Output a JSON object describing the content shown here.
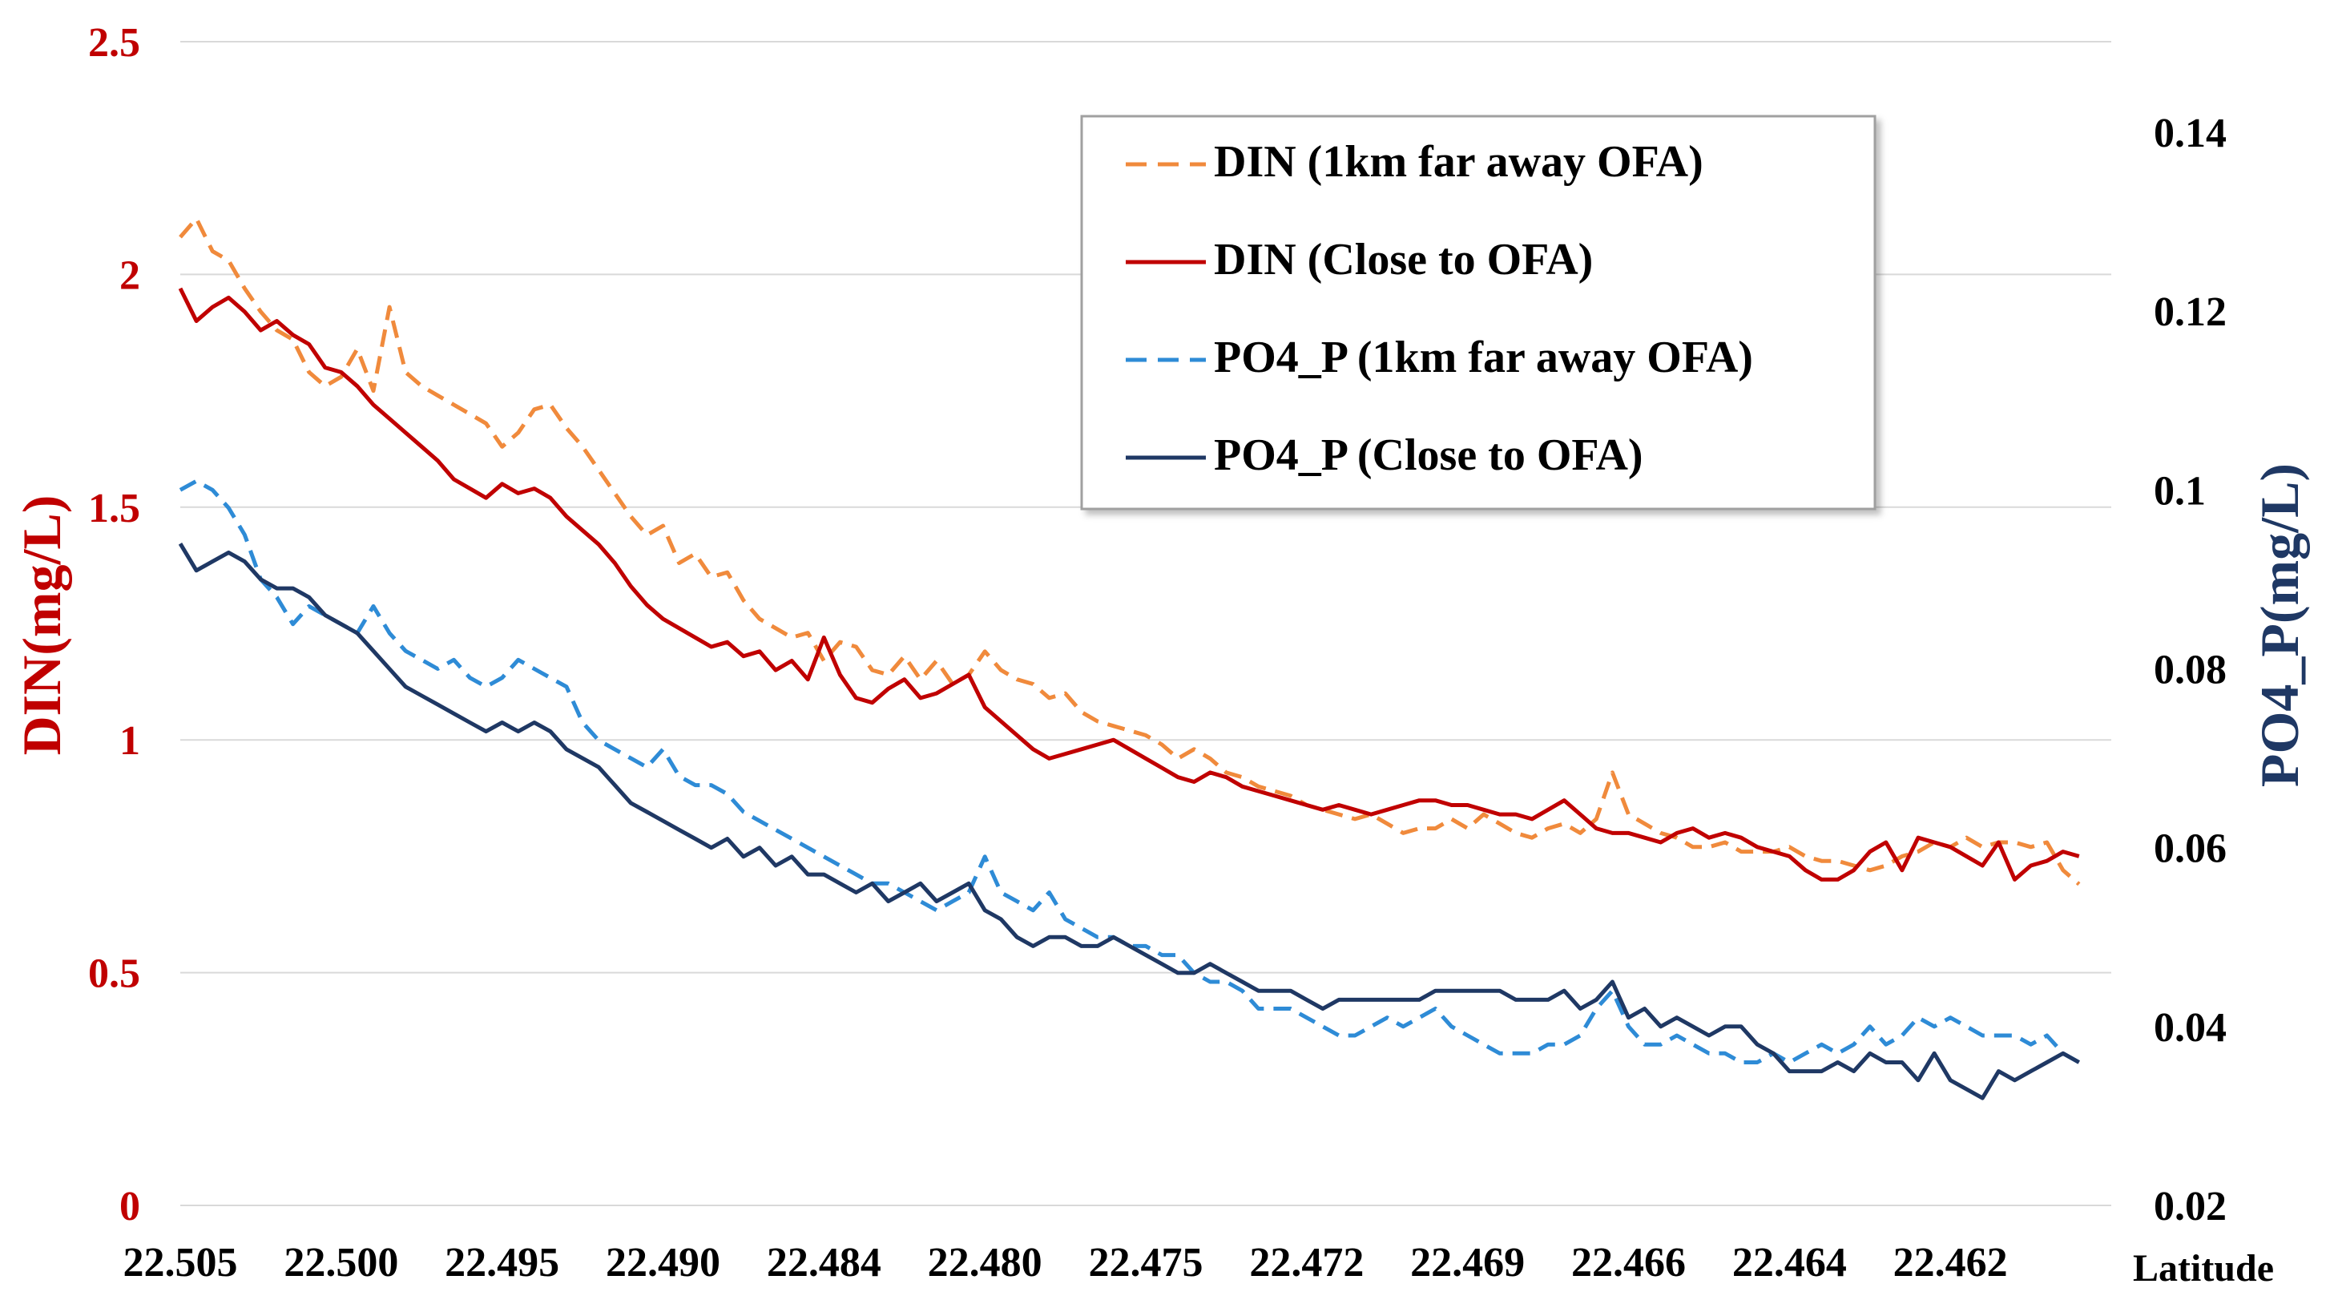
{
  "chart_data": {
    "type": "line",
    "xlabel": "Latitude",
    "ylabel_left": "DIN(mg/L)",
    "ylabel_right": "PO4_P(mg/L)",
    "x_tick_labels": [
      "22.505",
      "22.500",
      "22.495",
      "22.490",
      "22.484",
      "22.480",
      "22.475",
      "22.472",
      "22.469",
      "22.466",
      "22.464",
      "22.462"
    ],
    "y_left": {
      "min": 0,
      "max": 2.5,
      "ticks": [
        "0",
        "0.5",
        "1",
        "1.5",
        "2",
        "2.5"
      ],
      "tick_values": [
        0,
        0.5,
        1,
        1.5,
        2,
        2.5
      ]
    },
    "y_right": {
      "min": 0.02,
      "max": 0.15,
      "ticks": [
        "0.02",
        "0.04",
        "0.06",
        "0.08",
        "0.1",
        "0.12",
        "0.14"
      ],
      "tick_values": [
        0.02,
        0.04,
        0.06,
        0.08,
        0.1,
        0.12,
        0.14
      ]
    },
    "x_index_range": [
      0,
      12
    ],
    "grid": true,
    "legend_position": "top-right",
    "colors": {
      "left_axis": "#c00000",
      "right_axis": "#1f3864",
      "grid": "#d9d9d9",
      "axis_text": "#000000"
    },
    "series": [
      {
        "name": "DIN (1km far away OFA)",
        "axis": "left",
        "color": "#f08a3c",
        "dash": "dashed",
        "x": [
          0,
          0.1,
          0.2,
          0.3,
          0.4,
          0.5,
          0.6,
          0.7,
          0.8,
          0.9,
          1.0,
          1.1,
          1.2,
          1.3,
          1.4,
          1.5,
          1.6,
          1.7,
          1.8,
          1.9,
          2.0,
          2.1,
          2.2,
          2.3,
          2.4,
          2.5,
          2.6,
          2.7,
          2.8,
          2.9,
          3.0,
          3.1,
          3.2,
          3.3,
          3.4,
          3.5,
          3.6,
          3.7,
          3.8,
          3.9,
          4.0,
          4.1,
          4.2,
          4.3,
          4.4,
          4.5,
          4.6,
          4.7,
          4.8,
          4.9,
          5.0,
          5.1,
          5.2,
          5.3,
          5.4,
          5.5,
          5.6,
          5.7,
          5.8,
          5.9,
          6.0,
          6.1,
          6.2,
          6.3,
          6.4,
          6.5,
          6.6,
          6.7,
          6.8,
          6.9,
          7.0,
          7.1,
          7.2,
          7.3,
          7.4,
          7.5,
          7.6,
          7.7,
          7.8,
          7.9,
          8.0,
          8.1,
          8.2,
          8.3,
          8.4,
          8.5,
          8.6,
          8.7,
          8.8,
          8.9,
          9.0,
          9.1,
          9.2,
          9.3,
          9.4,
          9.5,
          9.6,
          9.7,
          9.8,
          9.9,
          10.0,
          10.1,
          10.2,
          10.3,
          10.4,
          10.5,
          10.6,
          10.7,
          10.8,
          10.9,
          11.0,
          11.1,
          11.2,
          11.3,
          11.4,
          11.5,
          11.6,
          11.7,
          11.8
        ],
        "values": [
          2.08,
          2.12,
          2.05,
          2.03,
          1.97,
          1.92,
          1.88,
          1.86,
          1.79,
          1.76,
          1.78,
          1.84,
          1.75,
          1.93,
          1.79,
          1.76,
          1.74,
          1.72,
          1.7,
          1.68,
          1.63,
          1.66,
          1.71,
          1.72,
          1.67,
          1.63,
          1.58,
          1.53,
          1.48,
          1.44,
          1.46,
          1.38,
          1.4,
          1.35,
          1.36,
          1.3,
          1.26,
          1.24,
          1.22,
          1.23,
          1.17,
          1.21,
          1.2,
          1.15,
          1.14,
          1.18,
          1.13,
          1.17,
          1.12,
          1.14,
          1.19,
          1.15,
          1.13,
          1.12,
          1.09,
          1.1,
          1.06,
          1.04,
          1.03,
          1.02,
          1.01,
          0.99,
          0.96,
          0.98,
          0.96,
          0.93,
          0.92,
          0.9,
          0.89,
          0.88,
          0.86,
          0.85,
          0.84,
          0.83,
          0.84,
          0.82,
          0.8,
          0.81,
          0.81,
          0.83,
          0.81,
          0.84,
          0.82,
          0.8,
          0.79,
          0.81,
          0.82,
          0.8,
          0.83,
          0.93,
          0.84,
          0.82,
          0.8,
          0.79,
          0.77,
          0.77,
          0.78,
          0.76,
          0.76,
          0.76,
          0.77,
          0.75,
          0.74,
          0.74,
          0.73,
          0.72,
          0.73,
          0.75,
          0.76,
          0.78,
          0.77,
          0.79,
          0.77,
          0.78,
          0.78,
          0.77,
          0.78,
          0.72,
          0.69
        ]
      },
      {
        "name": "DIN (Close to OFA)",
        "axis": "left",
        "color": "#c00000",
        "dash": "solid",
        "x": [
          0,
          0.1,
          0.2,
          0.3,
          0.4,
          0.5,
          0.6,
          0.7,
          0.8,
          0.9,
          1.0,
          1.1,
          1.2,
          1.3,
          1.4,
          1.5,
          1.6,
          1.7,
          1.8,
          1.9,
          2.0,
          2.1,
          2.2,
          2.3,
          2.4,
          2.5,
          2.6,
          2.7,
          2.8,
          2.9,
          3.0,
          3.1,
          3.2,
          3.3,
          3.4,
          3.5,
          3.6,
          3.7,
          3.8,
          3.9,
          4.0,
          4.1,
          4.2,
          4.3,
          4.4,
          4.5,
          4.6,
          4.7,
          4.8,
          4.9,
          5.0,
          5.1,
          5.2,
          5.3,
          5.4,
          5.5,
          5.6,
          5.7,
          5.8,
          5.9,
          6.0,
          6.1,
          6.2,
          6.3,
          6.4,
          6.5,
          6.6,
          6.7,
          6.8,
          6.9,
          7.0,
          7.1,
          7.2,
          7.3,
          7.4,
          7.5,
          7.6,
          7.7,
          7.8,
          7.9,
          8.0,
          8.1,
          8.2,
          8.3,
          8.4,
          8.5,
          8.6,
          8.7,
          8.8,
          8.9,
          9.0,
          9.1,
          9.2,
          9.3,
          9.4,
          9.5,
          9.6,
          9.7,
          9.8,
          9.9,
          10.0,
          10.1,
          10.2,
          10.3,
          10.4,
          10.5,
          10.6,
          10.7,
          10.8,
          10.9,
          11.0,
          11.1,
          11.2,
          11.3,
          11.4,
          11.5,
          11.6,
          11.7,
          11.8
        ],
        "values": [
          1.97,
          1.9,
          1.93,
          1.95,
          1.92,
          1.88,
          1.9,
          1.87,
          1.85,
          1.8,
          1.79,
          1.76,
          1.72,
          1.69,
          1.66,
          1.63,
          1.6,
          1.56,
          1.54,
          1.52,
          1.55,
          1.53,
          1.54,
          1.52,
          1.48,
          1.45,
          1.42,
          1.38,
          1.33,
          1.29,
          1.26,
          1.24,
          1.22,
          1.2,
          1.21,
          1.18,
          1.19,
          1.15,
          1.17,
          1.13,
          1.22,
          1.14,
          1.09,
          1.08,
          1.11,
          1.13,
          1.09,
          1.1,
          1.12,
          1.14,
          1.07,
          1.04,
          1.01,
          0.98,
          0.96,
          0.97,
          0.98,
          0.99,
          1.0,
          0.98,
          0.96,
          0.94,
          0.92,
          0.91,
          0.93,
          0.92,
          0.9,
          0.89,
          0.88,
          0.87,
          0.86,
          0.85,
          0.86,
          0.85,
          0.84,
          0.85,
          0.86,
          0.87,
          0.87,
          0.86,
          0.86,
          0.85,
          0.84,
          0.84,
          0.83,
          0.85,
          0.87,
          0.84,
          0.81,
          0.8,
          0.8,
          0.79,
          0.78,
          0.8,
          0.81,
          0.79,
          0.8,
          0.79,
          0.77,
          0.76,
          0.75,
          0.72,
          0.7,
          0.7,
          0.72,
          0.76,
          0.78,
          0.72,
          0.79,
          0.78,
          0.77,
          0.75,
          0.73,
          0.78,
          0.7,
          0.73,
          0.74,
          0.76,
          0.75
        ]
      },
      {
        "name": "PO4_P (1km far away OFA)",
        "axis": "right",
        "color": "#2e8bd6",
        "dash": "dashed",
        "x": [
          0,
          0.1,
          0.2,
          0.3,
          0.4,
          0.5,
          0.6,
          0.7,
          0.8,
          0.9,
          1.0,
          1.1,
          1.2,
          1.3,
          1.4,
          1.5,
          1.6,
          1.7,
          1.8,
          1.9,
          2.0,
          2.1,
          2.2,
          2.3,
          2.4,
          2.5,
          2.6,
          2.7,
          2.8,
          2.9,
          3.0,
          3.1,
          3.2,
          3.3,
          3.4,
          3.5,
          3.6,
          3.7,
          3.8,
          3.9,
          4.0,
          4.1,
          4.2,
          4.3,
          4.4,
          4.5,
          4.6,
          4.7,
          4.8,
          4.9,
          5.0,
          5.1,
          5.2,
          5.3,
          5.4,
          5.5,
          5.6,
          5.7,
          5.8,
          5.9,
          6.0,
          6.1,
          6.2,
          6.3,
          6.4,
          6.5,
          6.6,
          6.7,
          6.8,
          6.9,
          7.0,
          7.1,
          7.2,
          7.3,
          7.4,
          7.5,
          7.6,
          7.7,
          7.8,
          7.9,
          8.0,
          8.1,
          8.2,
          8.3,
          8.4,
          8.5,
          8.6,
          8.7,
          8.8,
          8.9,
          9.0,
          9.1,
          9.2,
          9.3,
          9.4,
          9.5,
          9.6,
          9.7,
          9.8,
          9.9,
          10.0,
          10.1,
          10.2,
          10.3,
          10.4,
          10.5,
          10.6,
          10.7,
          10.8,
          10.9,
          11.0,
          11.1,
          11.2,
          11.3,
          11.4,
          11.5,
          11.6,
          11.7,
          11.8
        ],
        "values": [
          0.1,
          0.101,
          0.1,
          0.098,
          0.095,
          0.09,
          0.088,
          0.085,
          0.087,
          0.086,
          0.085,
          0.084,
          0.087,
          0.084,
          0.082,
          0.081,
          0.08,
          0.081,
          0.079,
          0.078,
          0.079,
          0.081,
          0.08,
          0.079,
          0.078,
          0.074,
          0.072,
          0.071,
          0.07,
          0.069,
          0.071,
          0.068,
          0.067,
          0.067,
          0.066,
          0.064,
          0.063,
          0.062,
          0.061,
          0.06,
          0.059,
          0.058,
          0.057,
          0.056,
          0.056,
          0.055,
          0.054,
          0.053,
          0.054,
          0.055,
          0.059,
          0.055,
          0.054,
          0.053,
          0.055,
          0.052,
          0.051,
          0.05,
          0.05,
          0.049,
          0.049,
          0.048,
          0.048,
          0.046,
          0.045,
          0.045,
          0.044,
          0.042,
          0.042,
          0.042,
          0.041,
          0.04,
          0.039,
          0.039,
          0.04,
          0.041,
          0.04,
          0.041,
          0.042,
          0.04,
          0.039,
          0.038,
          0.037,
          0.037,
          0.037,
          0.038,
          0.038,
          0.039,
          0.042,
          0.044,
          0.04,
          0.038,
          0.038,
          0.039,
          0.038,
          0.037,
          0.037,
          0.036,
          0.036,
          0.037,
          0.036,
          0.037,
          0.038,
          0.037,
          0.038,
          0.04,
          0.038,
          0.039,
          0.041,
          0.04,
          0.041,
          0.04,
          0.039,
          0.039,
          0.039,
          0.038,
          0.039,
          0.037,
          0.036
        ]
      },
      {
        "name": "PO4_P (Close to OFA)",
        "axis": "right",
        "color": "#1f3864",
        "dash": "solid",
        "x": [
          0,
          0.1,
          0.2,
          0.3,
          0.4,
          0.5,
          0.6,
          0.7,
          0.8,
          0.9,
          1.0,
          1.1,
          1.2,
          1.3,
          1.4,
          1.5,
          1.6,
          1.7,
          1.8,
          1.9,
          2.0,
          2.1,
          2.2,
          2.3,
          2.4,
          2.5,
          2.6,
          2.7,
          2.8,
          2.9,
          3.0,
          3.1,
          3.2,
          3.3,
          3.4,
          3.5,
          3.6,
          3.7,
          3.8,
          3.9,
          4.0,
          4.1,
          4.2,
          4.3,
          4.4,
          4.5,
          4.6,
          4.7,
          4.8,
          4.9,
          5.0,
          5.1,
          5.2,
          5.3,
          5.4,
          5.5,
          5.6,
          5.7,
          5.8,
          5.9,
          6.0,
          6.1,
          6.2,
          6.3,
          6.4,
          6.5,
          6.6,
          6.7,
          6.8,
          6.9,
          7.0,
          7.1,
          7.2,
          7.3,
          7.4,
          7.5,
          7.6,
          7.7,
          7.8,
          7.9,
          8.0,
          8.1,
          8.2,
          8.3,
          8.4,
          8.5,
          8.6,
          8.7,
          8.8,
          8.9,
          9.0,
          9.1,
          9.2,
          9.3,
          9.4,
          9.5,
          9.6,
          9.7,
          9.8,
          9.9,
          10.0,
          10.1,
          10.2,
          10.3,
          10.4,
          10.5,
          10.6,
          10.7,
          10.8,
          10.9,
          11.0,
          11.1,
          11.2,
          11.3,
          11.4,
          11.5,
          11.6,
          11.7,
          11.8
        ],
        "values": [
          0.094,
          0.091,
          0.092,
          0.093,
          0.092,
          0.09,
          0.089,
          0.089,
          0.088,
          0.086,
          0.085,
          0.084,
          0.082,
          0.08,
          0.078,
          0.077,
          0.076,
          0.075,
          0.074,
          0.073,
          0.074,
          0.073,
          0.074,
          0.073,
          0.071,
          0.07,
          0.069,
          0.067,
          0.065,
          0.064,
          0.063,
          0.062,
          0.061,
          0.06,
          0.061,
          0.059,
          0.06,
          0.058,
          0.059,
          0.057,
          0.057,
          0.056,
          0.055,
          0.056,
          0.054,
          0.055,
          0.056,
          0.054,
          0.055,
          0.056,
          0.053,
          0.052,
          0.05,
          0.049,
          0.05,
          0.05,
          0.049,
          0.049,
          0.05,
          0.049,
          0.048,
          0.047,
          0.046,
          0.046,
          0.047,
          0.046,
          0.045,
          0.044,
          0.044,
          0.044,
          0.043,
          0.042,
          0.043,
          0.043,
          0.043,
          0.043,
          0.043,
          0.043,
          0.044,
          0.044,
          0.044,
          0.044,
          0.044,
          0.043,
          0.043,
          0.043,
          0.044,
          0.042,
          0.043,
          0.045,
          0.041,
          0.042,
          0.04,
          0.041,
          0.04,
          0.039,
          0.04,
          0.04,
          0.038,
          0.037,
          0.035,
          0.035,
          0.035,
          0.036,
          0.035,
          0.037,
          0.036,
          0.036,
          0.034,
          0.037,
          0.034,
          0.033,
          0.032,
          0.035,
          0.034,
          0.035,
          0.036,
          0.037,
          0.036
        ]
      }
    ]
  }
}
